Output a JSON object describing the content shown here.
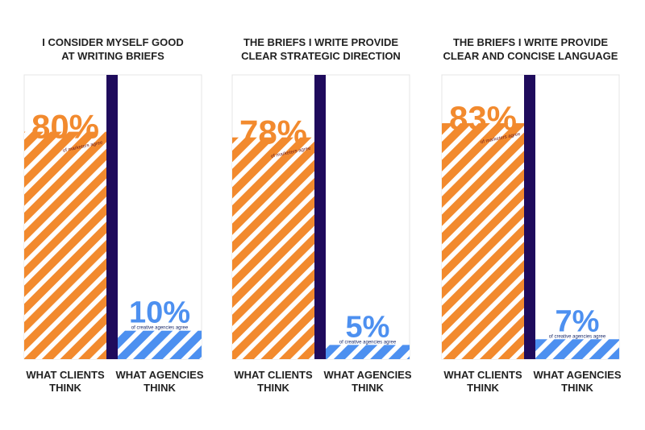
{
  "chart_data": [
    {
      "type": "bar",
      "title": [
        "I CONSIDER MYSELF GOOD",
        "AT WRITING BRIEFS"
      ],
      "categories": [
        [
          "WHAT CLIENTS",
          "THINK"
        ],
        [
          "WHAT AGENCIES",
          "THINK"
        ]
      ],
      "values": [
        80,
        10
      ],
      "value_labels": [
        "80%",
        "10%"
      ],
      "annotations": [
        "of marketers agree",
        "of creative agencies agree"
      ],
      "colors": [
        "#f28a2e",
        "#4d90f0"
      ],
      "ylim": [
        0,
        100
      ]
    },
    {
      "type": "bar",
      "title": [
        "THE BRIEFS I WRITE PROVIDE",
        "CLEAR STRATEGIC DIRECTION"
      ],
      "categories": [
        [
          "WHAT CLIENTS",
          "THINK"
        ],
        [
          "WHAT AGENCIES",
          "THINK"
        ]
      ],
      "values": [
        78,
        5
      ],
      "value_labels": [
        "78%",
        "5%"
      ],
      "annotations": [
        "of marketers agree",
        "of creative agencies agree"
      ],
      "colors": [
        "#f28a2e",
        "#4d90f0"
      ],
      "ylim": [
        0,
        100
      ]
    },
    {
      "type": "bar",
      "title": [
        "THE BRIEFS I WRITE PROVIDE",
        "CLEAR AND CONCISE LANGUAGE"
      ],
      "categories": [
        [
          "WHAT CLIENTS",
          "THINK"
        ],
        [
          "WHAT AGENCIES",
          "THINK"
        ]
      ],
      "values": [
        83,
        7
      ],
      "value_labels": [
        "83%",
        "7%"
      ],
      "annotations": [
        "of marketers agree",
        "of creative agencies agree"
      ],
      "colors": [
        "#f28a2e",
        "#4d90f0"
      ],
      "ylim": [
        0,
        100
      ]
    }
  ]
}
